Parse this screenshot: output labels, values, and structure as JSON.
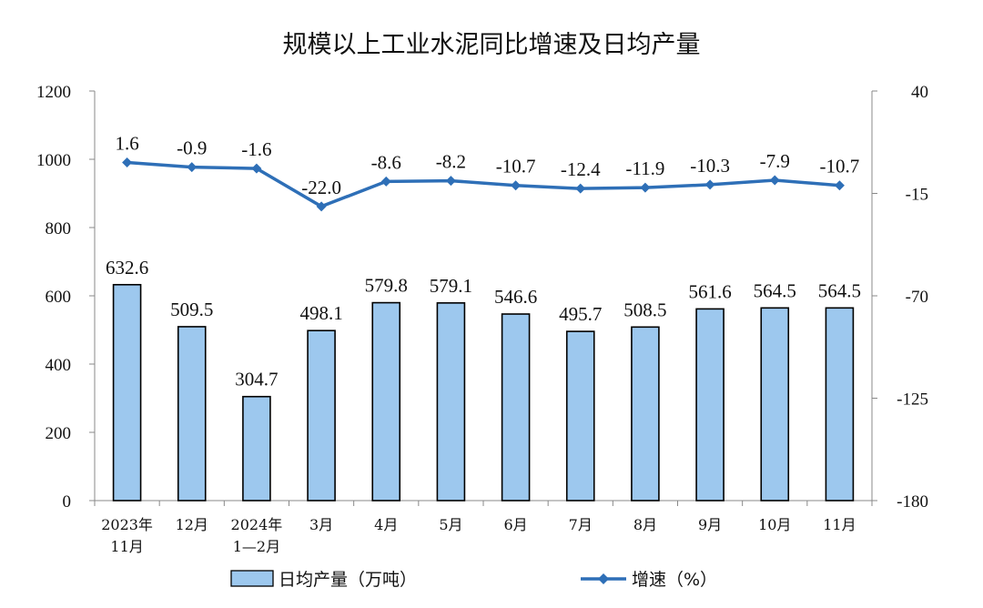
{
  "chart_data": {
    "type": "bar+line",
    "title": "规模以上工业水泥同比增速及日均产量",
    "categories": [
      [
        "2023年",
        "11月"
      ],
      [
        "12月"
      ],
      [
        "2024年",
        "1—2月"
      ],
      [
        "3月"
      ],
      [
        "4月"
      ],
      [
        "5月"
      ],
      [
        "6月"
      ],
      [
        "7月"
      ],
      [
        "8月"
      ],
      [
        "9月"
      ],
      [
        "10月"
      ],
      [
        "11月"
      ]
    ],
    "series": [
      {
        "name": "日均产量（万吨）",
        "type": "bar",
        "axis": "left",
        "color": "#9dc8ee",
        "values": [
          632.6,
          509.5,
          304.7,
          498.1,
          579.8,
          579.1,
          546.6,
          495.7,
          508.5,
          561.6,
          564.5,
          564.5
        ],
        "labels": [
          "632.6",
          "509.5",
          "304.7",
          "498.1",
          "579.8",
          "579.1",
          "546.6",
          "495.7",
          "508.5",
          "561.6",
          "564.5",
          "564.5"
        ]
      },
      {
        "name": "增速（%）",
        "type": "line",
        "axis": "right",
        "color": "#2e6fb7",
        "values": [
          1.6,
          -0.9,
          -1.6,
          -22.0,
          -8.6,
          -8.2,
          -10.7,
          -12.4,
          -11.9,
          -10.3,
          -7.9,
          -10.7
        ],
        "labels": [
          "1.6",
          "-0.9",
          "-1.6",
          "-22.0",
          "-8.6",
          "-8.2",
          "-10.7",
          "-12.4",
          "-11.9",
          "-10.3",
          "-7.9",
          "-10.7"
        ]
      }
    ],
    "y_left": {
      "min": 0,
      "max": 1200,
      "ticks": [
        "0",
        "200",
        "400",
        "600",
        "800",
        "1000",
        "1200"
      ]
    },
    "y_right": {
      "min": -180,
      "max": 40,
      "ticks": [
        "-180",
        "-125",
        "-70",
        "-15",
        "40"
      ]
    },
    "grid": false,
    "legend_position": "bottom"
  }
}
